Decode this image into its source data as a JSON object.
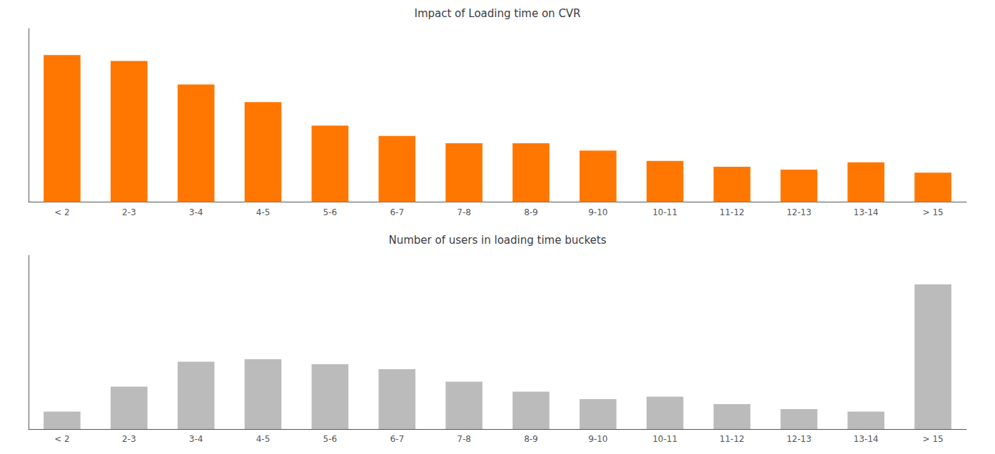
{
  "chart_data": [
    {
      "type": "bar",
      "title": "Impact of Loading time on CVR",
      "categories": [
        "< 2",
        "2-3",
        "3-4",
        "4-5",
        "5-6",
        "6-7",
        "7-8",
        "8-9",
        "9-10",
        "10-11",
        "11-12",
        "12-13",
        "13-14",
        "> 15"
      ],
      "values": [
        100,
        96,
        80,
        68,
        52,
        45,
        40,
        40,
        35,
        28,
        24,
        22,
        27,
        20
      ],
      "color": "#FF7700",
      "ylim": [
        0,
        118
      ],
      "grid": false,
      "tick_labels": "x"
    },
    {
      "type": "bar",
      "title": "Number of users in loading time buckets",
      "categories": [
        "< 2",
        "2-3",
        "3-4",
        "4-5",
        "5-6",
        "6-7",
        "7-8",
        "8-9",
        "9-10",
        "10-11",
        "11-12",
        "12-13",
        "13-14",
        "> 15"
      ],
      "values": [
        7,
        17,
        27,
        28,
        26,
        24,
        19,
        15,
        12,
        13,
        10,
        8,
        7,
        58
      ],
      "color": "#BBBBBB",
      "ylim": [
        0,
        69.6
      ],
      "grid": false,
      "tick_labels": "x"
    }
  ]
}
